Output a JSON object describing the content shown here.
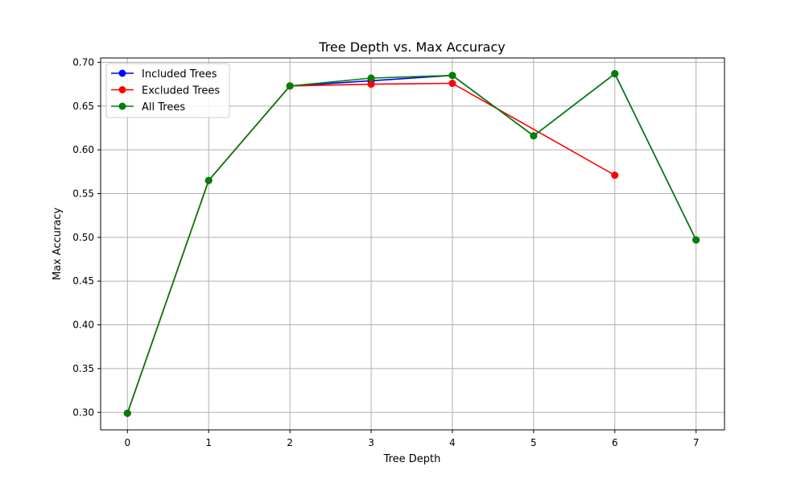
{
  "chart_data": {
    "type": "line",
    "title": "Tree Depth vs. Max Accuracy",
    "xlabel": "Tree Depth",
    "ylabel": "Max Accuracy",
    "xlim": [
      -0.33,
      7.35
    ],
    "ylim": [
      0.28,
      0.705
    ],
    "xticks": [
      0,
      1,
      2,
      3,
      4,
      5,
      6,
      7
    ],
    "yticks": [
      0.3,
      0.35,
      0.4,
      0.45,
      0.5,
      0.55,
      0.6,
      0.65,
      0.7
    ],
    "grid": true,
    "legend": "upper-left",
    "series": [
      {
        "name": "Included Trees",
        "color": "#0000ff",
        "x": [
          0,
          1,
          2,
          3,
          4,
          5,
          6,
          7
        ],
        "y": [
          0.299,
          0.565,
          0.673,
          0.679,
          0.685,
          0.616,
          0.687,
          0.497
        ]
      },
      {
        "name": "Excluded Trees",
        "color": "#ff0000",
        "x": [
          0,
          1,
          2,
          3,
          4,
          6
        ],
        "y": [
          0.299,
          0.565,
          0.673,
          0.675,
          0.676,
          0.571
        ]
      },
      {
        "name": "All Trees",
        "color": "#008000",
        "x": [
          0,
          1,
          2,
          3,
          4,
          5,
          6,
          7
        ],
        "y": [
          0.299,
          0.565,
          0.673,
          0.682,
          0.685,
          0.616,
          0.687,
          0.497
        ]
      }
    ]
  }
}
